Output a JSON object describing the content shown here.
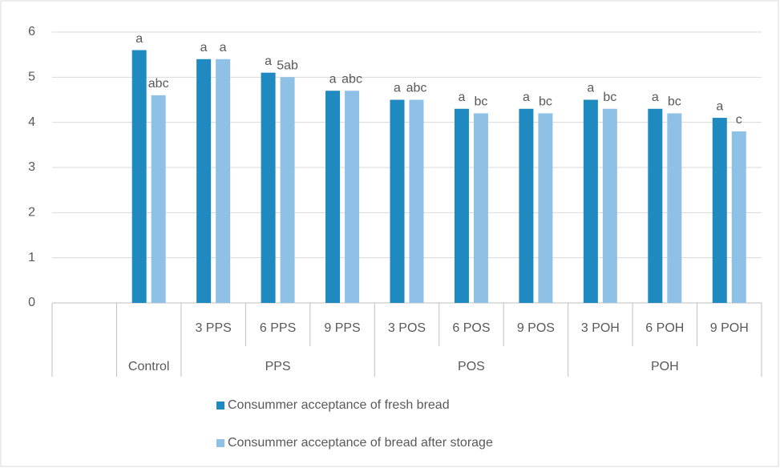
{
  "chart_data": {
    "type": "bar",
    "categories": [
      null,
      null,
      "3 PPS",
      "6 PPS",
      "9 PPS",
      "3 POS",
      "6 POS",
      "9 POS",
      "3 POH",
      "6 POH",
      "9 POH"
    ],
    "groups": [
      null,
      "Control",
      "PPS",
      "PPS",
      "PPS",
      "POS",
      "POS",
      "POS",
      "POH",
      "POH",
      "POH"
    ],
    "series": [
      {
        "name": "Consummer acceptance of fresh bread",
        "color": "#1f8ac0",
        "values": [
          null,
          5.6,
          5.4,
          5.1,
          4.7,
          4.5,
          4.3,
          4.3,
          4.5,
          4.3,
          4.1
        ],
        "letters": [
          null,
          "a",
          "a",
          "a",
          "a",
          "a",
          "a",
          "a",
          "a",
          "a",
          "a"
        ]
      },
      {
        "name": "Consummer acceptance of bread after storage",
        "color": "#8fc1e7",
        "values": [
          null,
          4.6,
          5.4,
          5.0,
          4.7,
          4.5,
          4.2,
          4.2,
          4.3,
          4.2,
          3.8
        ],
        "letters": [
          null,
          "abc",
          "a",
          "5ab",
          "abc",
          "abc",
          "bc",
          "bc",
          "bc",
          "bc",
          "c"
        ]
      }
    ],
    "ylim": [
      0,
      6
    ],
    "yticks": [
      0,
      1,
      2,
      3,
      4,
      5,
      6
    ],
    "grid": true,
    "legend": "bottom"
  }
}
